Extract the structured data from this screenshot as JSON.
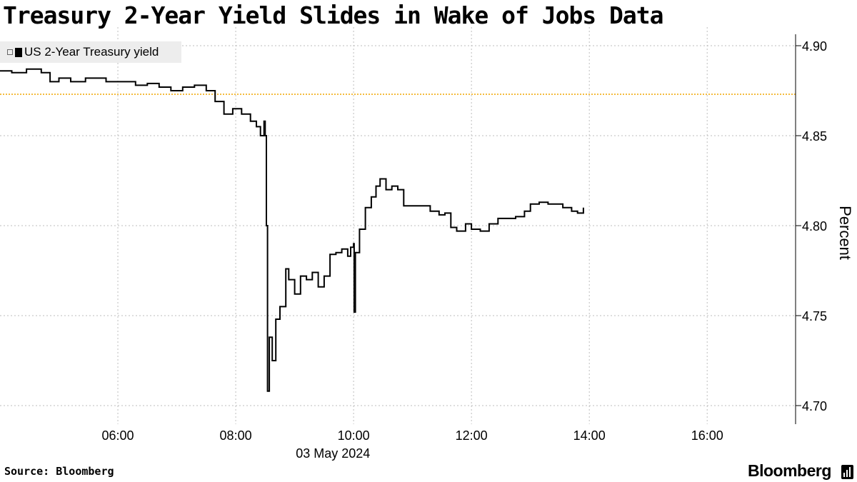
{
  "title": "Treasury 2-Year Yield Slides in Wake of Jobs Data",
  "legend": {
    "label": "US 2-Year Treasury yield",
    "swatch_color": "#000000",
    "icon": "legend-toggle-icon"
  },
  "source": "Source: Bloomberg",
  "brand": "Bloomberg",
  "chart_data": {
    "type": "line",
    "title": "Treasury 2-Year Yield Slides in Wake of Jobs Data",
    "xlabel": "03 May 2024",
    "ylabel": "Percent",
    "x_unit": "hour of day, 03 May 2024",
    "xlim": [
      4.0,
      17.5
    ],
    "ylim": [
      4.69,
      4.9
    ],
    "x_ticks": [
      6,
      8,
      10,
      12,
      14,
      16
    ],
    "x_tick_labels": [
      "06:00",
      "08:00",
      "10:00",
      "12:00",
      "14:00",
      "16:00"
    ],
    "y_ticks": [
      4.7,
      4.75,
      4.8,
      4.85,
      4.9
    ],
    "y_tick_labels": [
      "4.70",
      "4.75",
      "4.80",
      "4.85",
      "4.90"
    ],
    "y_axis_side": "right",
    "grid": "dotted",
    "legend_position": "top-left",
    "reference_line": {
      "y": 4.873,
      "color": "#f0a500",
      "style": "dotted"
    },
    "series": [
      {
        "name": "US 2-Year Treasury yield",
        "color": "#000000",
        "points": [
          [
            4.0,
            4.886
          ],
          [
            4.2,
            4.885
          ],
          [
            4.45,
            4.887
          ],
          [
            4.7,
            4.885
          ],
          [
            4.85,
            4.88
          ],
          [
            5.0,
            4.882
          ],
          [
            5.2,
            4.88
          ],
          [
            5.45,
            4.882
          ],
          [
            5.8,
            4.88
          ],
          [
            6.1,
            4.88
          ],
          [
            6.3,
            4.878
          ],
          [
            6.5,
            4.879
          ],
          [
            6.7,
            4.877
          ],
          [
            6.9,
            4.875
          ],
          [
            7.1,
            4.877
          ],
          [
            7.3,
            4.878
          ],
          [
            7.5,
            4.875
          ],
          [
            7.65,
            4.869
          ],
          [
            7.8,
            4.862
          ],
          [
            7.95,
            4.865
          ],
          [
            8.1,
            4.862
          ],
          [
            8.25,
            4.858
          ],
          [
            8.35,
            4.855
          ],
          [
            8.42,
            4.85
          ],
          [
            8.48,
            4.858
          ],
          [
            8.5,
            4.85
          ],
          [
            8.52,
            4.8
          ],
          [
            8.54,
            4.708
          ],
          [
            8.57,
            4.738
          ],
          [
            8.62,
            4.725
          ],
          [
            8.68,
            4.748
          ],
          [
            8.75,
            4.755
          ],
          [
            8.85,
            4.776
          ],
          [
            8.9,
            4.77
          ],
          [
            9.0,
            4.762
          ],
          [
            9.1,
            4.772
          ],
          [
            9.2,
            4.77
          ],
          [
            9.3,
            4.774
          ],
          [
            9.4,
            4.766
          ],
          [
            9.5,
            4.772
          ],
          [
            9.6,
            4.784
          ],
          [
            9.7,
            4.785
          ],
          [
            9.8,
            4.787
          ],
          [
            9.9,
            4.783
          ],
          [
            9.95,
            4.788
          ],
          [
            10.0,
            4.79
          ],
          [
            10.01,
            4.752
          ],
          [
            10.03,
            4.785
          ],
          [
            10.1,
            4.798
          ],
          [
            10.2,
            4.81
          ],
          [
            10.3,
            4.816
          ],
          [
            10.38,
            4.822
          ],
          [
            10.45,
            4.826
          ],
          [
            10.55,
            4.82
          ],
          [
            10.65,
            4.822
          ],
          [
            10.75,
            4.82
          ],
          [
            10.85,
            4.811
          ],
          [
            11.0,
            4.811
          ],
          [
            11.15,
            4.811
          ],
          [
            11.3,
            4.808
          ],
          [
            11.45,
            4.806
          ],
          [
            11.55,
            4.807
          ],
          [
            11.65,
            4.799
          ],
          [
            11.75,
            4.797
          ],
          [
            11.9,
            4.801
          ],
          [
            12.0,
            4.798
          ],
          [
            12.15,
            4.797
          ],
          [
            12.3,
            4.801
          ],
          [
            12.45,
            4.804
          ],
          [
            12.6,
            4.804
          ],
          [
            12.75,
            4.805
          ],
          [
            12.9,
            4.808
          ],
          [
            13.0,
            4.812
          ],
          [
            13.15,
            4.813
          ],
          [
            13.3,
            4.812
          ],
          [
            13.45,
            4.812
          ],
          [
            13.55,
            4.81
          ],
          [
            13.7,
            4.808
          ],
          [
            13.8,
            4.807
          ],
          [
            13.9,
            4.81
          ]
        ]
      }
    ]
  }
}
